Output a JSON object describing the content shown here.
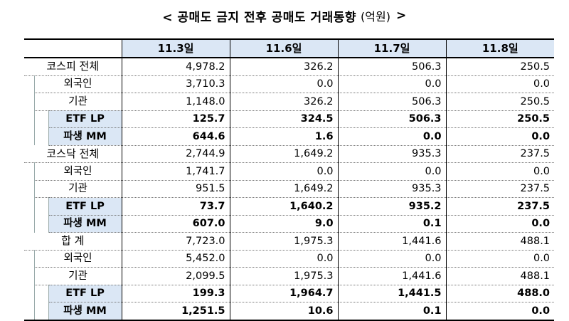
{
  "title": {
    "main": "< 공매도 금지 전후 공매도 거래동향",
    "unit": "(억원)",
    "close": ">"
  },
  "columns": [
    "11.3일",
    "11.6일",
    "11.7일",
    "11.8일"
  ],
  "groups": [
    {
      "total_label": "코스피 전체",
      "total": [
        "4,978.2",
        "326.2",
        "506.3",
        "250.5"
      ],
      "rows": [
        {
          "label": "외국인",
          "level": 1,
          "values": [
            "3,710.3",
            "0.0",
            "0.0",
            "0.0"
          ]
        },
        {
          "label": "기관",
          "level": 1,
          "values": [
            "1,148.0",
            "326.2",
            "506.3",
            "250.5"
          ]
        },
        {
          "label": "ETF LP",
          "level": 2,
          "values": [
            "125.7",
            "324.5",
            "506.3",
            "250.5"
          ]
        },
        {
          "label": "파생 MM",
          "level": 2,
          "values": [
            "644.6",
            "1.6",
            "0.0",
            "0.0"
          ]
        }
      ]
    },
    {
      "total_label": "코스닥 전체",
      "total": [
        "2,744.9",
        "1,649.2",
        "935.3",
        "237.5"
      ],
      "rows": [
        {
          "label": "외국인",
          "level": 1,
          "values": [
            "1,741.7",
            "0.0",
            "0.0",
            "0.0"
          ]
        },
        {
          "label": "기관",
          "level": 1,
          "values": [
            "951.5",
            "1,649.2",
            "935.3",
            "237.5"
          ]
        },
        {
          "label": "ETF LP",
          "level": 2,
          "values": [
            "73.7",
            "1,640.2",
            "935.2",
            "237.5"
          ]
        },
        {
          "label": "파생 MM",
          "level": 2,
          "values": [
            "607.0",
            "9.0",
            "0.1",
            "0.0"
          ]
        }
      ]
    },
    {
      "total_label": "합 계",
      "total": [
        "7,723.0",
        "1,975.3",
        "1,441.6",
        "488.1"
      ],
      "rows": [
        {
          "label": "외국인",
          "level": 1,
          "values": [
            "5,452.0",
            "0.0",
            "0.0",
            "0.0"
          ]
        },
        {
          "label": "기관",
          "level": 1,
          "values": [
            "2,099.5",
            "1,975.3",
            "1,441.6",
            "488.1"
          ]
        },
        {
          "label": "ETF LP",
          "level": 2,
          "values": [
            "199.3",
            "1,964.7",
            "1,441.5",
            "488.0"
          ]
        },
        {
          "label": "파생 MM",
          "level": 2,
          "values": [
            "1,251.5",
            "10.6",
            "0.1",
            "0.0"
          ]
        }
      ]
    }
  ]
}
